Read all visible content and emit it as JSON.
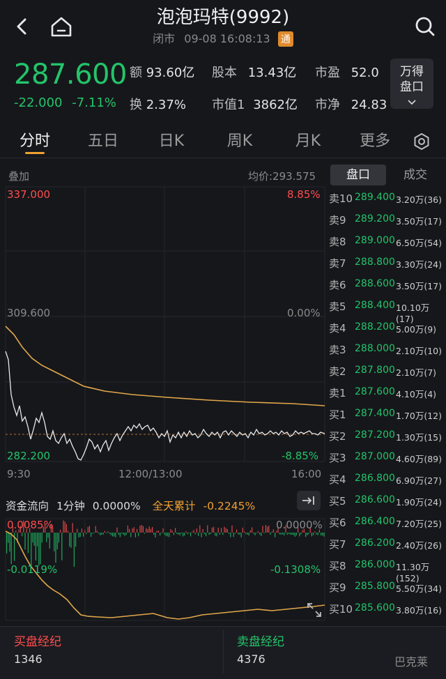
{
  "header": {
    "title": "泡泡玛特(9992)",
    "status": "闭市",
    "datetime": "09-08 16:08:13",
    "badge": "通"
  },
  "quote": {
    "price": "287.600",
    "change": "-22.000",
    "change_pct": "-7.11%",
    "stats": [
      {
        "label": "额",
        "value": "93.60亿"
      },
      {
        "label": "股本",
        "value": "13.43亿"
      },
      {
        "label": "市盈",
        "value": "52.0"
      },
      {
        "label": "换",
        "value": "2.37%"
      },
      {
        "label": "市值1",
        "value": "3862亿"
      },
      {
        "label": "市净",
        "value": "24.83"
      }
    ],
    "wande_line1": "万得",
    "wande_line2": "盘口"
  },
  "tabs": [
    "分时",
    "五日",
    "日K",
    "周K",
    "月K",
    "更多"
  ],
  "chart": {
    "overlay_label": "叠加",
    "avg_price": "均价:293.575",
    "y_top": "337.000",
    "y_mid": "309.600",
    "y_bottom": "282.200",
    "pct_top": "8.85%",
    "pct_mid": "0.00%",
    "pct_bottom": "-8.85%",
    "x_start": "9:30",
    "x_mid": "12:00/13:00",
    "x_end": "16:00"
  },
  "flow": {
    "title": "资金流向",
    "interval": "1分钟",
    "interval_value": "0.0000%",
    "cum_label": "全天累计",
    "cum_value": "-0.2245%",
    "y_top_left": "0.0085%",
    "y_top_right": "0.0000%",
    "y_mid_left": "-0.0119%",
    "y_mid_right": "-0.1308%"
  },
  "orderbook": {
    "tab_active": "盘口",
    "tab_other": "成交",
    "asks": [
      {
        "side": "卖10",
        "price": "289.400",
        "vol": "3.20万(36)"
      },
      {
        "side": "卖9",
        "price": "289.200",
        "vol": "3.50万(17)"
      },
      {
        "side": "卖8",
        "price": "289.000",
        "vol": "6.50万(54)"
      },
      {
        "side": "卖7",
        "price": "288.800",
        "vol": "3.30万(24)"
      },
      {
        "side": "卖6",
        "price": "288.600",
        "vol": "3.50万(17)"
      },
      {
        "side": "卖5",
        "price": "288.400",
        "vol": "10.10万(17)"
      },
      {
        "side": "卖4",
        "price": "288.200",
        "vol": "5.00万(9)"
      },
      {
        "side": "卖3",
        "price": "288.000",
        "vol": "2.10万(10)"
      },
      {
        "side": "卖2",
        "price": "287.800",
        "vol": "2.10万(7)"
      },
      {
        "side": "卖1",
        "price": "287.600",
        "vol": "4.10万(4)"
      }
    ],
    "bids": [
      {
        "side": "买1",
        "price": "287.400",
        "vol": "1.70万(12)"
      },
      {
        "side": "买2",
        "price": "287.200",
        "vol": "1.30万(15)"
      },
      {
        "side": "买3",
        "price": "287.000",
        "vol": "4.60万(89)"
      },
      {
        "side": "买4",
        "price": "286.800",
        "vol": "6.90万(27)"
      },
      {
        "side": "买5",
        "price": "286.600",
        "vol": "1.90万(24)"
      },
      {
        "side": "买6",
        "price": "286.400",
        "vol": "7.20万(25)"
      },
      {
        "side": "买7",
        "price": "286.200",
        "vol": "2.40万(26)"
      },
      {
        "side": "买8",
        "price": "286.000",
        "vol": "11.30万(152)"
      },
      {
        "side": "买9",
        "price": "285.800",
        "vol": "5.50万(34)"
      },
      {
        "side": "买10",
        "price": "285.600",
        "vol": "3.80万(16)"
      }
    ]
  },
  "brokers": {
    "buy_label": "买盘经纪",
    "buy_value": "1346",
    "sell_label": "卖盘经纪",
    "sell_value": "4376",
    "sell_name": "巴克莱"
  },
  "colors": {
    "up": "#ff4d4d",
    "down": "#23c56a",
    "accent": "#f0a030",
    "background": "#16171b"
  }
}
